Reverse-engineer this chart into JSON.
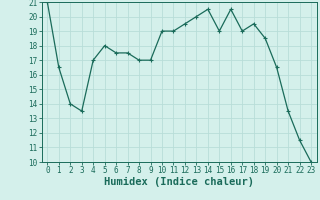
{
  "x": [
    0,
    1,
    2,
    3,
    4,
    5,
    6,
    7,
    8,
    9,
    10,
    11,
    12,
    13,
    14,
    15,
    16,
    17,
    18,
    19,
    20,
    21,
    22,
    23
  ],
  "y": [
    21,
    16.5,
    14,
    13.5,
    17,
    18,
    17.5,
    17.5,
    17,
    17,
    19,
    19,
    19.5,
    20,
    20.5,
    19,
    20.5,
    19,
    19.5,
    18.5,
    16.5,
    13.5,
    11.5,
    10
  ],
  "line_color": "#1a6b5a",
  "marker": "+",
  "marker_size": 3,
  "marker_linewidth": 0.8,
  "bg_color": "#d4f0eb",
  "grid_color": "#b8ddd8",
  "xlabel": "Humidex (Indice chaleur)",
  "ylim": [
    10,
    21
  ],
  "xlim": [
    -0.5,
    23.5
  ],
  "yticks": [
    10,
    11,
    12,
    13,
    14,
    15,
    16,
    17,
    18,
    19,
    20,
    21
  ],
  "xticks": [
    0,
    1,
    2,
    3,
    4,
    5,
    6,
    7,
    8,
    9,
    10,
    11,
    12,
    13,
    14,
    15,
    16,
    17,
    18,
    19,
    20,
    21,
    22,
    23
  ],
  "tick_color": "#1a6b5a",
  "label_color": "#1a6b5a",
  "tick_fontsize": 5.5,
  "xlabel_fontsize": 7.5,
  "line_width": 0.9
}
